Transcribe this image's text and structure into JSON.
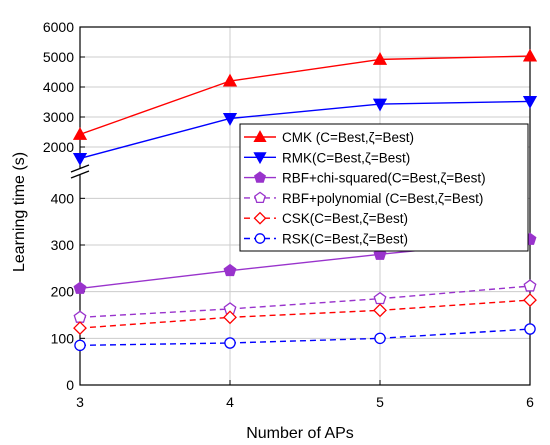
{
  "chart_data": {
    "type": "line",
    "title": "",
    "xlabel": "Number of APs",
    "ylabel": "Learning time (s)",
    "x": [
      3,
      4,
      5,
      6
    ],
    "x_ticks": [
      "3",
      "4",
      "5",
      "6"
    ],
    "y_axis_break": true,
    "y_lower_range": [
      0,
      450
    ],
    "y_upper_range": [
      1300,
      6000
    ],
    "y_lower_ticks": [
      "0",
      "100",
      "200",
      "300",
      "400"
    ],
    "y_upper_ticks": [
      "2000",
      "3000",
      "4000",
      "5000",
      "6000"
    ],
    "grid": true,
    "legend_position": "top-right",
    "series": [
      {
        "name": "CMK (C=Best,ζ=Best)",
        "values": [
          2420,
          4200,
          4920,
          5030
        ],
        "color": "#ff0000",
        "marker": "triangle-up",
        "filled": true,
        "dashed": false
      },
      {
        "name": "RMK(C=Best,ζ=Best)",
        "values": [
          1620,
          2950,
          3430,
          3520
        ],
        "color": "#0000ff",
        "marker": "triangle-down",
        "filled": true,
        "dashed": false
      },
      {
        "name": "RBF+chi-squared(C=Best,ζ=Best)",
        "values": [
          207,
          245,
          280,
          312
        ],
        "color": "#9933cc",
        "marker": "pentagon",
        "filled": true,
        "dashed": false
      },
      {
        "name": "RBF+polynomial (C=Best,ζ=Best)",
        "values": [
          145,
          163,
          185,
          212
        ],
        "color": "#9933cc",
        "marker": "pentagon",
        "filled": false,
        "dashed": true
      },
      {
        "name": "CSK(C=Best,ζ=Best)",
        "values": [
          122,
          145,
          160,
          182
        ],
        "color": "#ff0000",
        "marker": "diamond",
        "filled": false,
        "dashed": true
      },
      {
        "name": "RSK(C=Best,ζ=Best)",
        "values": [
          85,
          90,
          100,
          120
        ],
        "color": "#0000ff",
        "marker": "circle",
        "filled": false,
        "dashed": true
      }
    ]
  }
}
